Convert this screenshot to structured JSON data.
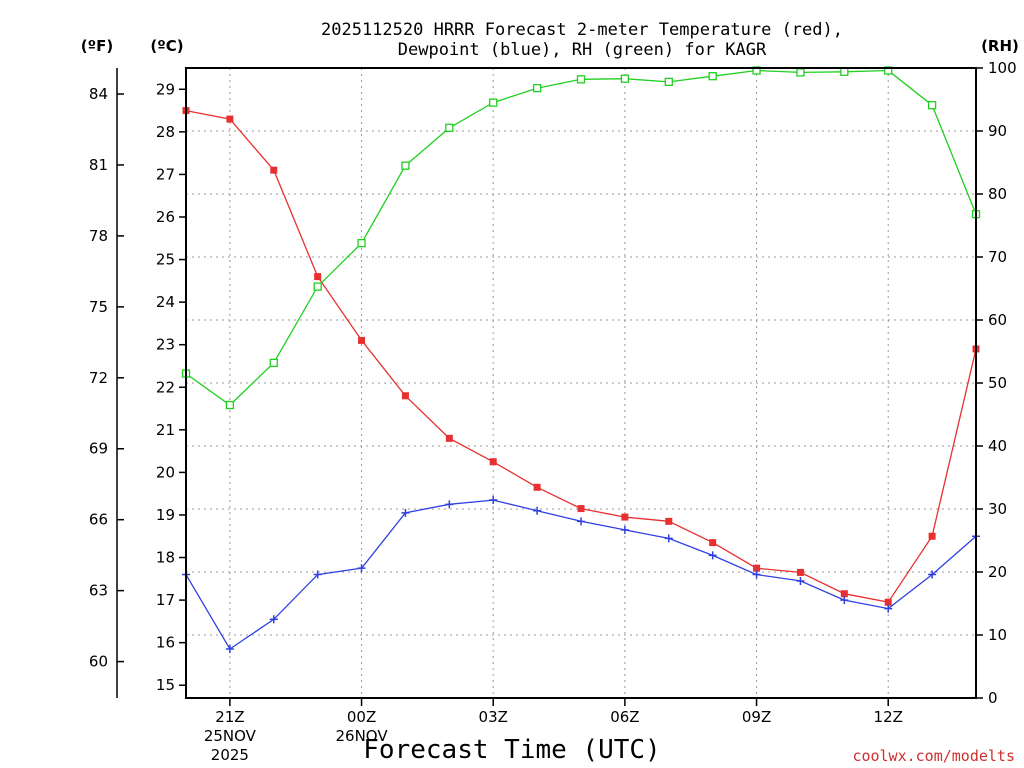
{
  "chart_data": {
    "type": "line",
    "title": [
      "2025112520 HRRR Forecast 2-meter Temperature (red),",
      "Dewpoint (blue), RH (green) for KAGR"
    ],
    "xlabel": "Forecast Time (UTC)",
    "credit": "coolwx.com/modelts",
    "units": {
      "fahrenheit": "(ºF)",
      "celsius": "(ºC)",
      "rh": "(RH)"
    },
    "x_tick_labels": [
      {
        "label": [
          "21Z",
          "25NOV",
          "2025"
        ],
        "hour_index": 1
      },
      {
        "label": [
          "00Z",
          "26NOV"
        ],
        "hour_index": 4
      },
      {
        "label": [
          "03Z"
        ],
        "hour_index": 7
      },
      {
        "label": [
          "06Z"
        ],
        "hour_index": 10
      },
      {
        "label": [
          "09Z"
        ],
        "hour_index": 13
      },
      {
        "label": [
          "12Z"
        ],
        "hour_index": 16
      }
    ],
    "x_hours": [
      "20Z",
      "21Z",
      "22Z",
      "23Z",
      "00Z",
      "01Z",
      "02Z",
      "03Z",
      "04Z",
      "05Z",
      "06Z",
      "07Z",
      "08Z",
      "09Z",
      "10Z",
      "11Z",
      "12Z",
      "13Z",
      "14Z"
    ],
    "y_left_celsius": {
      "range": [
        14.7,
        29.5
      ],
      "ticks": [
        15,
        16,
        17,
        18,
        19,
        20,
        21,
        22,
        23,
        24,
        25,
        26,
        27,
        28,
        29
      ]
    },
    "y_left_fahrenheit": {
      "ticks": [
        60,
        63,
        66,
        69,
        72,
        75,
        78,
        81,
        84
      ]
    },
    "y_right_rh": {
      "range": [
        0,
        100
      ],
      "ticks": [
        0,
        10,
        20,
        30,
        40,
        50,
        60,
        70,
        80,
        90,
        100
      ]
    },
    "grid": true,
    "series": [
      {
        "name": "Temperature",
        "color": "#e83030",
        "marker": "filled-square",
        "axis": "celsius",
        "values": [
          28.5,
          28.3,
          27.1,
          24.6,
          23.1,
          21.8,
          20.8,
          20.25,
          19.65,
          19.15,
          18.95,
          18.85,
          18.35,
          17.75,
          17.65,
          17.15,
          16.95,
          18.5,
          22.9
        ]
      },
      {
        "name": "Dewpoint",
        "color": "#3040e0",
        "marker": "plus",
        "axis": "celsius",
        "values": [
          17.6,
          15.85,
          16.55,
          17.6,
          17.75,
          19.05,
          19.25,
          19.35,
          19.1,
          18.85,
          18.65,
          18.45,
          18.05,
          17.6,
          17.45,
          17.0,
          16.8,
          17.6,
          18.5
        ]
      },
      {
        "name": "RH",
        "color": "#20d020",
        "marker": "open-square",
        "axis": "rh",
        "values": [
          51.5,
          46.5,
          53.2,
          65.3,
          72.2,
          84.5,
          90.5,
          94.5,
          96.8,
          98.2,
          98.3,
          97.8,
          98.7,
          99.6,
          99.3,
          99.4,
          99.6,
          94.1,
          76.8
        ]
      }
    ]
  }
}
